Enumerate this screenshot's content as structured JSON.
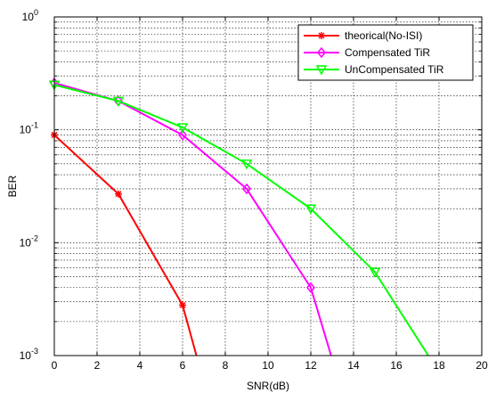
{
  "chart_data": {
    "type": "line",
    "title": "",
    "xlabel": "SNR(dB)",
    "ylabel": "BER",
    "xlim": [
      0,
      20
    ],
    "ylim": [
      0.001,
      1
    ],
    "yscale": "log",
    "grid": true,
    "legend_position": "top-right",
    "x_ticks": [
      "0",
      "2",
      "4",
      "6",
      "8",
      "10",
      "12",
      "14",
      "16",
      "18",
      "20"
    ],
    "y_ticks": [
      {
        "base": "10",
        "exp": "-3"
      },
      {
        "base": "10",
        "exp": "-2"
      },
      {
        "base": "10",
        "exp": "-1"
      },
      {
        "base": "10",
        "exp": "0"
      }
    ],
    "series": [
      {
        "name": "theorical(No-ISI)",
        "color": "#ff0000",
        "marker": "star",
        "x": [
          0,
          3,
          6,
          6.65
        ],
        "y": [
          0.09,
          0.027,
          0.0028,
          0.001
        ]
      },
      {
        "name": "Compensated TiR",
        "color": "#ff00ff",
        "marker": "diamond",
        "x": [
          0,
          3,
          6,
          9,
          12,
          12.95
        ],
        "y": [
          0.26,
          0.18,
          0.09,
          0.03,
          0.004,
          0.001
        ]
      },
      {
        "name": "UnCompensated TiR",
        "color": "#00ff00",
        "marker": "triangle-down",
        "x": [
          0,
          3,
          6,
          9,
          12,
          15,
          17.5
        ],
        "y": [
          0.25,
          0.18,
          0.105,
          0.05,
          0.02,
          0.0055,
          0.001
        ]
      }
    ]
  }
}
